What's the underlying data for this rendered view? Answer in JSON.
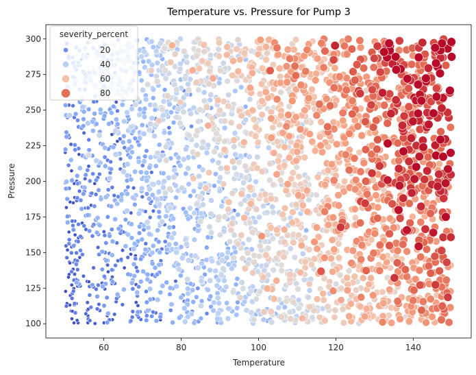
{
  "chart_data": {
    "type": "scatter",
    "title": "Temperature vs. Pressure for Pump 3",
    "xlabel": "Temperature",
    "ylabel": "Pressure",
    "xlim": [
      45,
      155
    ],
    "ylim": [
      90,
      310
    ],
    "xticks": [
      60,
      80,
      100,
      120,
      140
    ],
    "yticks": [
      100,
      125,
      150,
      175,
      200,
      225,
      250,
      275,
      300
    ],
    "hue": "severity_percent",
    "size": "severity_percent",
    "colormap": "coolwarm",
    "legend": {
      "title": "severity_percent",
      "placement": "top-left",
      "entries": [
        {
          "label": "20",
          "value": 20,
          "color": "#6b8ff0"
        },
        {
          "label": "40",
          "value": 40,
          "color": "#b7cff9"
        },
        {
          "label": "60",
          "value": 60,
          "color": "#f2c2a8"
        },
        {
          "label": "80",
          "value": 80,
          "color": "#e3715a"
        }
      ]
    },
    "data_description": "Points span temperature 50-150 and pressure 100-300; severity_percent rises from ~5 at low temperature/low pressure to ~95 at high temperature/high pressure.",
    "n_points": 3000
  }
}
